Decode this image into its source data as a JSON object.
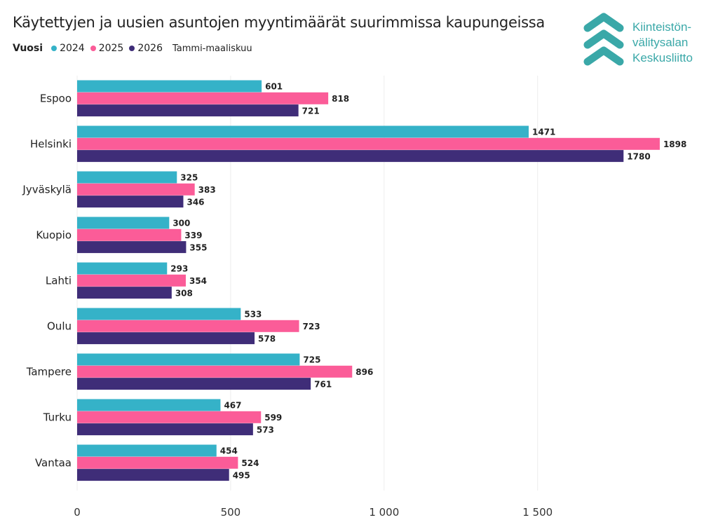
{
  "chart_data": {
    "type": "bar",
    "orientation": "horizontal",
    "title": "Käytettyjen ja uusien asuntojen myyntimäärät suurimmissa kaupungeissa",
    "legend_title": "Vuosi",
    "legend_note": "Tammi-maaliskuu",
    "legend_position": "top-left",
    "categories": [
      "Espoo",
      "Helsinki",
      "Jyväskylä",
      "Kuopio",
      "Lahti",
      "Oulu",
      "Tampere",
      "Turku",
      "Vantaa"
    ],
    "series": [
      {
        "name": "2024",
        "color": "#35b2c8",
        "values": [
          601,
          1471,
          325,
          300,
          293,
          533,
          725,
          467,
          454
        ]
      },
      {
        "name": "2025",
        "color": "#fb5c98",
        "values": [
          818,
          1898,
          383,
          339,
          354,
          723,
          896,
          599,
          524
        ]
      },
      {
        "name": "2026",
        "color": "#3f2d78",
        "values": [
          721,
          1780,
          346,
          355,
          308,
          578,
          761,
          573,
          495
        ]
      }
    ],
    "xlim": [
      0,
      1950
    ],
    "xticks": [
      0,
      500,
      1000,
      1500
    ],
    "xtick_labels": [
      "0",
      "500",
      "1 000",
      "1 500"
    ],
    "grid": true
  },
  "logo": {
    "lines": [
      "Kiinteistön-",
      "välitysalan",
      "Keskusliitto"
    ],
    "color": "#3aa8a8"
  }
}
